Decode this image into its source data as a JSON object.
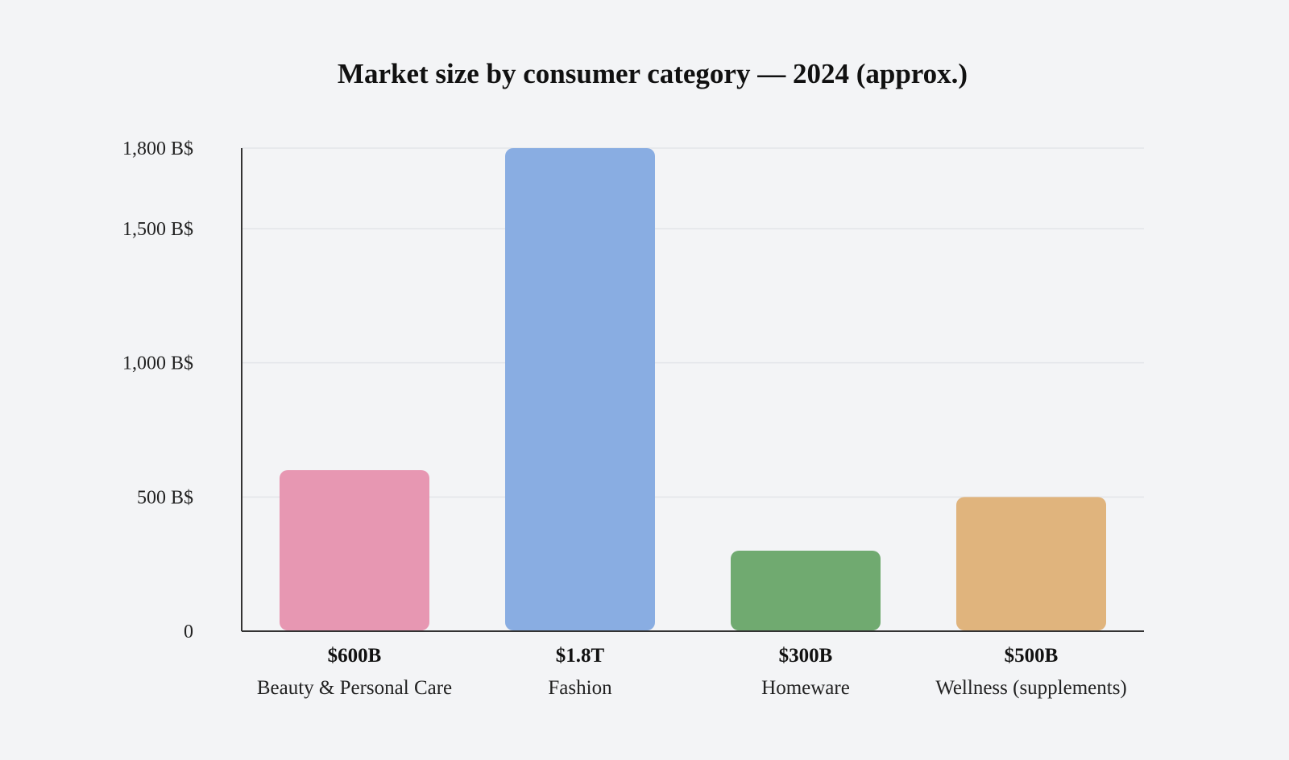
{
  "chart_data": {
    "type": "bar",
    "title": "Market size by consumer category — 2024 (approx.)",
    "xlabel": "",
    "ylabel": "",
    "categories": [
      "Beauty & Personal Care",
      "Fashion",
      "Homeware",
      "Wellness (supplements)"
    ],
    "values": [
      600,
      1800,
      300,
      500
    ],
    "value_labels": [
      "$600B",
      "$1.8T",
      "$300B",
      "$500B"
    ],
    "colors": [
      "#e797b2",
      "#89ade2",
      "#70aa70",
      "#e0b47d"
    ],
    "ylim": [
      0,
      1800
    ],
    "yticks": [
      0,
      500,
      1000,
      1500,
      1800
    ],
    "ytick_labels": [
      "0",
      "500 B$",
      "1,000 B$",
      "1,500 B$",
      "1,800 B$"
    ],
    "grid": true,
    "legend": "none"
  }
}
